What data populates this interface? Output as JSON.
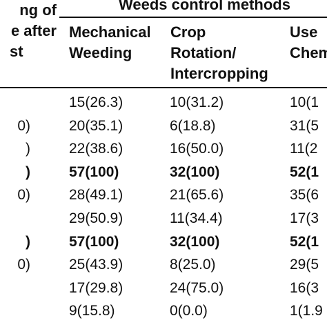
{
  "table": {
    "group_header": "Weeds control methods",
    "columns": [
      {
        "lines": [
          "ng of",
          "e after",
          "st"
        ]
      },
      {
        "lines": [
          "Mechanical",
          "Weeding"
        ]
      },
      {
        "lines": [
          "Crop",
          "Rotation/",
          "Intercropping"
        ]
      },
      {
        "lines": [
          "Use",
          "Chem"
        ]
      }
    ],
    "rows": [
      {
        "first": "",
        "mech": "15(26.3)",
        "crop": "10(31.2)",
        "chem": "10(1",
        "bold": false
      },
      {
        "first": "0)",
        "mech": "20(35.1)",
        "crop": "6(18.8)",
        "chem": "31(5",
        "bold": false
      },
      {
        "first": ")",
        "mech": "22(38.6)",
        "crop": "16(50.0)",
        "chem": "11(2",
        "bold": false
      },
      {
        "first": ")",
        "mech": "57(100)",
        "crop": "32(100)",
        "chem": "52(1",
        "bold": true
      },
      {
        "first": "0)",
        "mech": "28(49.1)",
        "crop": "21(65.6)",
        "chem": "35(6",
        "bold": false
      },
      {
        "first": "",
        "mech": "29(50.9)",
        "crop": "11(34.4)",
        "chem": "17(3",
        "bold": false
      },
      {
        "first": ")",
        "mech": "57(100)",
        "crop": "32(100)",
        "chem": "52(1",
        "bold": true
      },
      {
        "first": "0)",
        "mech": "25(43.9)",
        "crop": "8(25.0)",
        "chem": "29(5",
        "bold": false
      },
      {
        "first": "",
        "mech": "17(29.8)",
        "crop": "24(75.0)",
        "chem": "16(3",
        "bold": false
      },
      {
        "first": "",
        "mech": "9(15.8)",
        "crop": "0(0.0)",
        "chem": "1(1.9",
        "bold": false
      }
    ]
  }
}
